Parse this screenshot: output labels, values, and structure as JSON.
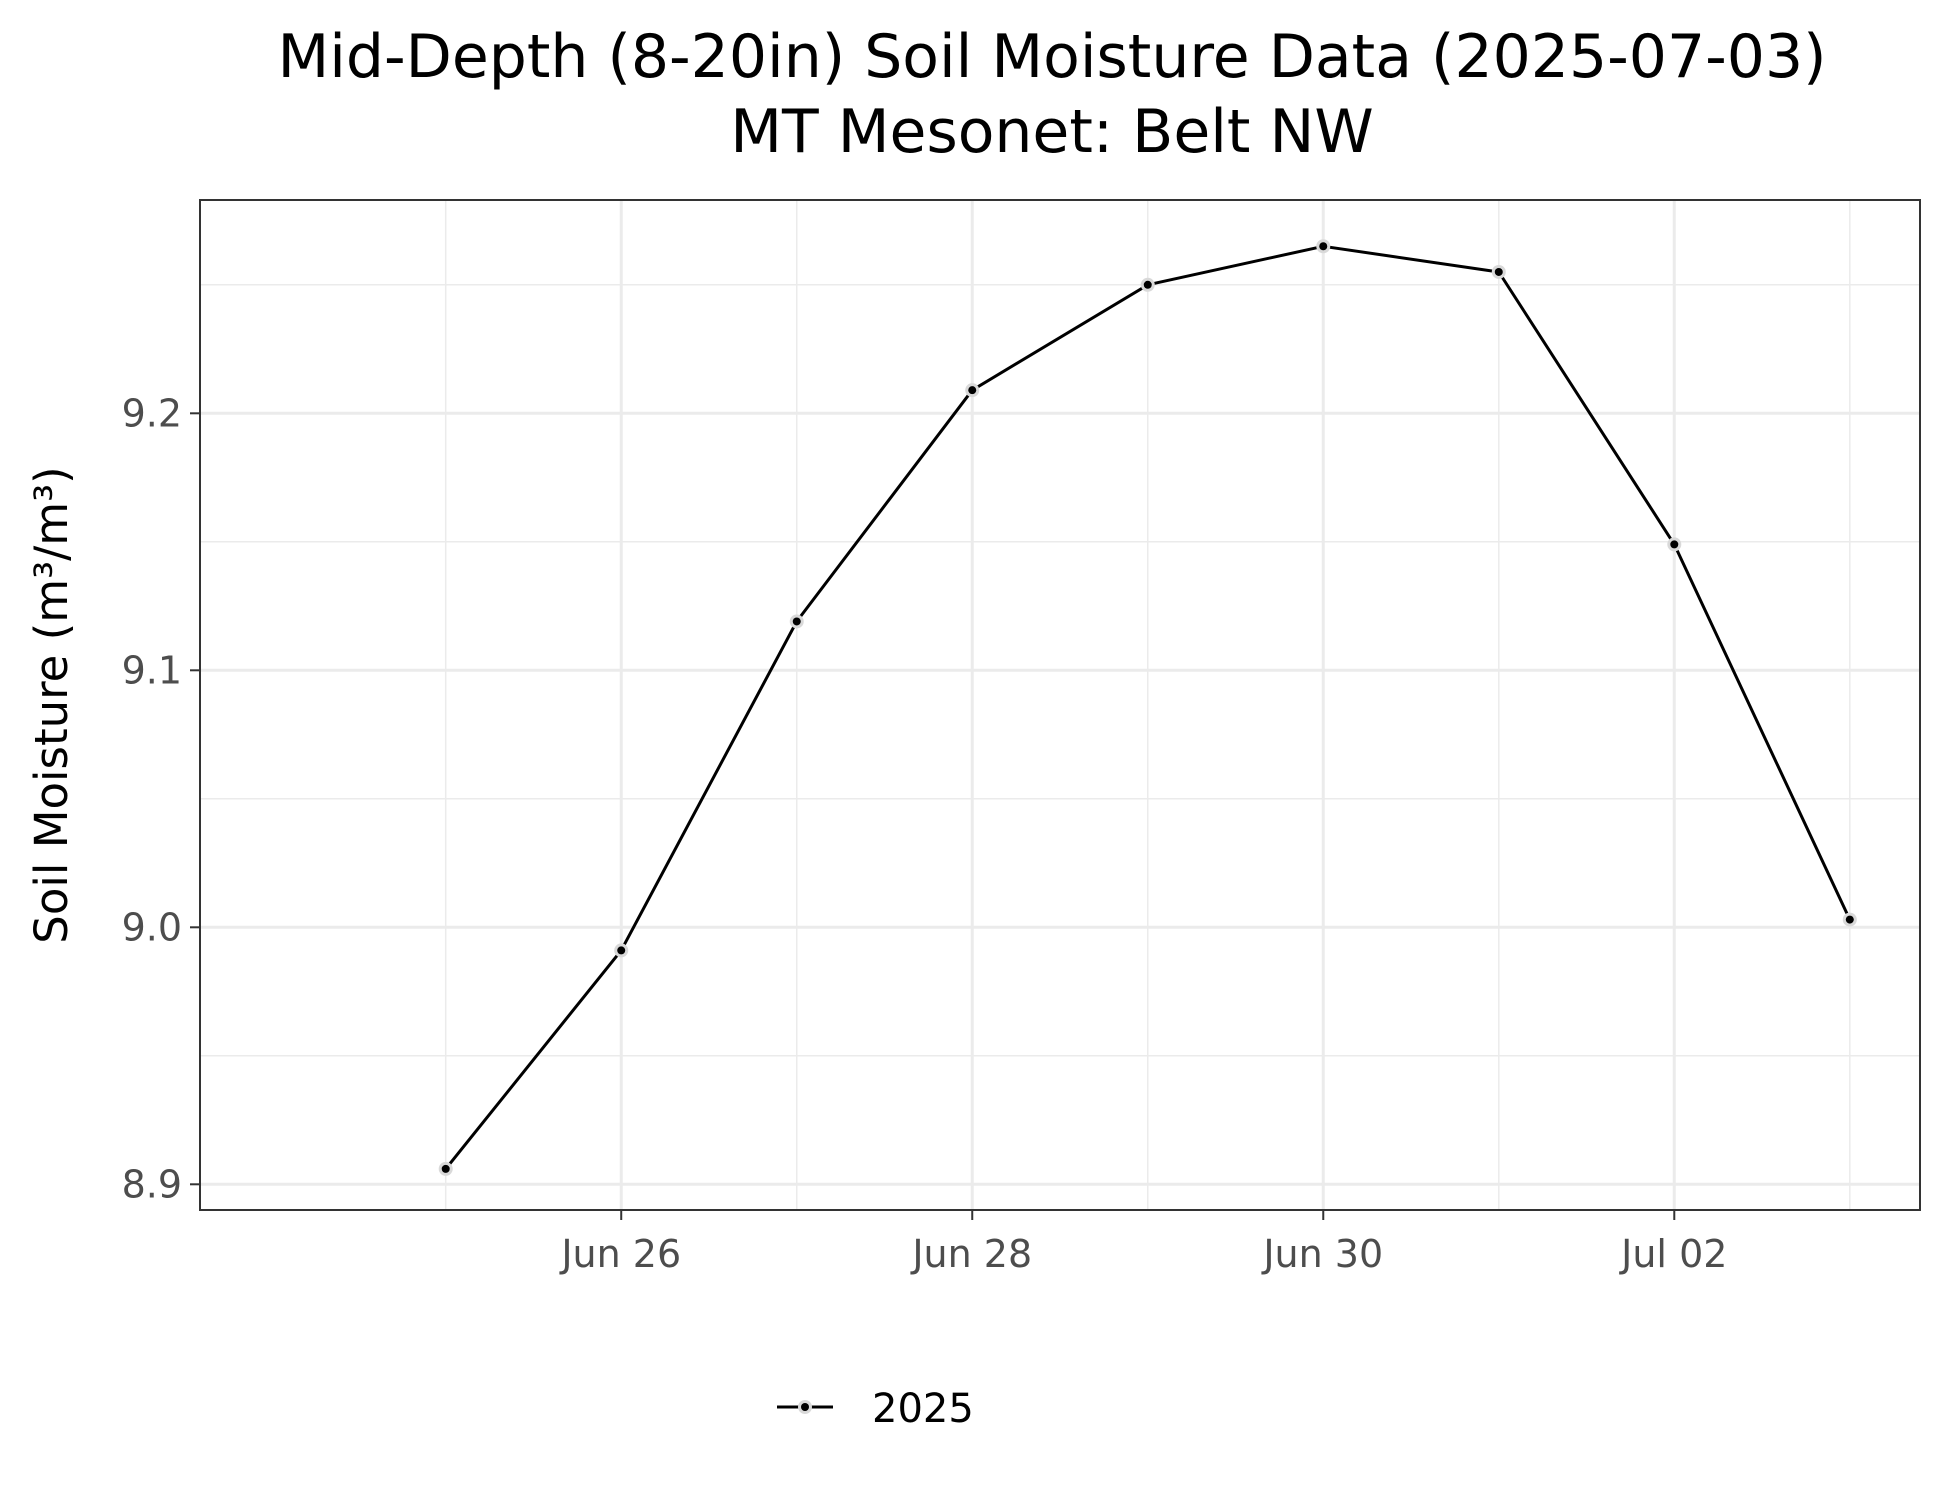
{
  "chart_data": {
    "type": "line",
    "title": "Mid-Depth (8-20in) Soil Moisture Data (2025-07-03)",
    "subtitle": "MT Mesonet: Belt NW",
    "xlabel": "",
    "ylabel": "Soil Moisture (m³/m³)",
    "x": [
      "2025-06-25",
      "2025-06-26",
      "2025-06-27",
      "2025-06-28",
      "2025-06-29",
      "2025-06-30",
      "2025-07-01",
      "2025-07-02",
      "2025-07-03"
    ],
    "x_ticks": [
      {
        "date": "2025-06-26",
        "label": "Jun 26"
      },
      {
        "date": "2025-06-28",
        "label": "Jun 28"
      },
      {
        "date": "2025-06-30",
        "label": "Jun 30"
      },
      {
        "date": "2025-07-02",
        "label": "Jul 02"
      }
    ],
    "xlim": [
      "2025-06-24",
      "2025-07-03"
    ],
    "ylim": [
      8.89,
      9.283
    ],
    "y_ticks": [
      {
        "value": 8.9,
        "label": "8.9"
      },
      {
        "value": 9.0,
        "label": "9.0"
      },
      {
        "value": 9.1,
        "label": "9.1"
      },
      {
        "value": 9.2,
        "label": "9.2"
      }
    ],
    "series": [
      {
        "name": "2025",
        "color": "#000000",
        "values": [
          8.906,
          8.991,
          9.119,
          9.209,
          9.25,
          9.265,
          9.255,
          9.149,
          9.003
        ]
      }
    ],
    "grid": true,
    "legend_position": "bottom"
  }
}
